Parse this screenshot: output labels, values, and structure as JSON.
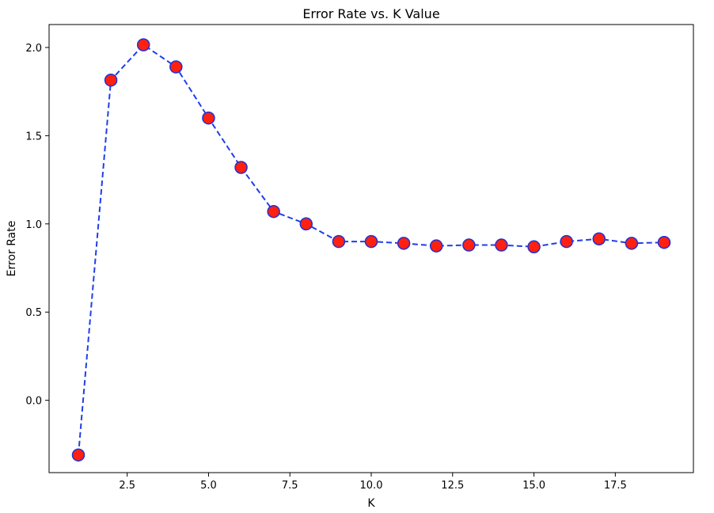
{
  "chart_data": {
    "type": "line",
    "title": "Error Rate vs. K Value",
    "xlabel": "K",
    "ylabel": "Error Rate",
    "xlim": [
      0.1,
      19.9
    ],
    "ylim": [
      -0.41,
      2.13
    ],
    "xticks": [
      2.5,
      5.0,
      7.5,
      10.0,
      12.5,
      15.0,
      17.5
    ],
    "xtick_labels": [
      "2.5",
      "5.0",
      "7.5",
      "10.0",
      "12.5",
      "15.0",
      "17.5"
    ],
    "yticks": [
      0.0,
      0.5,
      1.0,
      1.5,
      2.0
    ],
    "ytick_labels": [
      "0.0",
      "0.5",
      "1.0",
      "1.5",
      "2.0"
    ],
    "grid": false,
    "series": [
      {
        "x": [
          1,
          2,
          3,
          4,
          5,
          6,
          7,
          8,
          9,
          10,
          11,
          12,
          13,
          14,
          15,
          16,
          17,
          18,
          19
        ],
        "values": [
          -0.31,
          1.815,
          2.015,
          1.89,
          1.6,
          1.32,
          1.07,
          1.0,
          0.9,
          0.9,
          0.89,
          0.875,
          0.88,
          0.88,
          0.87,
          0.9,
          0.915,
          0.89,
          0.895
        ],
        "line_color": "#1f3fe8",
        "line_style": "dashed",
        "marker": "circle",
        "marker_face": "#ff2010",
        "marker_edge": "#2030d8"
      }
    ]
  }
}
